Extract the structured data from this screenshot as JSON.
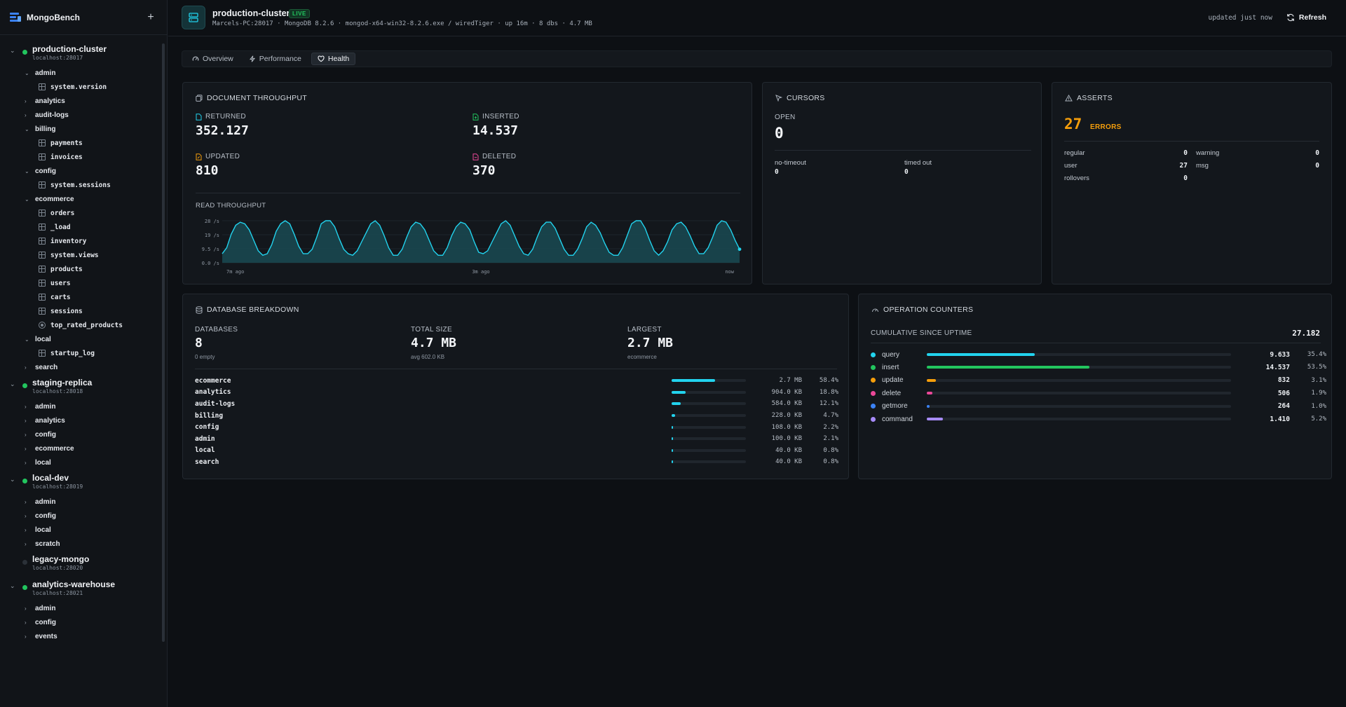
{
  "app": {
    "name": "MongoBench",
    "add_label": "+"
  },
  "sidebar": {
    "connections": [
      {
        "name": "production-cluster",
        "host": "localhost:28017",
        "expanded": true,
        "online": true,
        "dbs": [
          {
            "name": "admin",
            "expanded": true,
            "collections": [
              {
                "name": "system.version"
              }
            ]
          },
          {
            "name": "analytics",
            "expanded": false,
            "collections": []
          },
          {
            "name": "audit-logs",
            "expanded": false,
            "collections": []
          },
          {
            "name": "billing",
            "expanded": true,
            "collections": [
              {
                "name": "payments"
              },
              {
                "name": "invoices"
              }
            ]
          },
          {
            "name": "config",
            "expanded": true,
            "collections": [
              {
                "name": "system.sessions"
              }
            ]
          },
          {
            "name": "ecommerce",
            "expanded": true,
            "collections": [
              {
                "name": "orders"
              },
              {
                "name": "_load"
              },
              {
                "name": "inventory"
              },
              {
                "name": "system.views"
              },
              {
                "name": "products"
              },
              {
                "name": "users"
              },
              {
                "name": "carts"
              },
              {
                "name": "sessions"
              },
              {
                "name": "top_rated_products",
                "view": true
              }
            ]
          },
          {
            "name": "local",
            "expanded": true,
            "collections": [
              {
                "name": "startup_log"
              }
            ]
          },
          {
            "name": "search",
            "expanded": false,
            "collections": []
          }
        ]
      },
      {
        "name": "staging-replica",
        "host": "localhost:28018",
        "expanded": true,
        "online": true,
        "dbs": [
          {
            "name": "admin"
          },
          {
            "name": "analytics"
          },
          {
            "name": "config"
          },
          {
            "name": "ecommerce"
          },
          {
            "name": "local"
          }
        ]
      },
      {
        "name": "local-dev",
        "host": "localhost:28019",
        "expanded": true,
        "online": true,
        "dbs": [
          {
            "name": "admin"
          },
          {
            "name": "config"
          },
          {
            "name": "local"
          },
          {
            "name": "scratch"
          }
        ]
      },
      {
        "name": "legacy-mongo",
        "host": "localhost:28020",
        "expanded": false,
        "online": false,
        "dbs": []
      },
      {
        "name": "analytics-warehouse",
        "host": "localhost:28021",
        "expanded": true,
        "online": true,
        "dbs": [
          {
            "name": "admin"
          },
          {
            "name": "config"
          },
          {
            "name": "events"
          }
        ]
      }
    ]
  },
  "header": {
    "title": "production-cluster",
    "badge": "LIVE",
    "subtitle": "Marcels-PC:28017 · MongoDB 8.2.6 · mongod-x64-win32-8.2.6.exe / wiredTiger · up 16m · 8 dbs · 4.7 MB",
    "updated": "updated just now",
    "refresh_label": "Refresh"
  },
  "tabs": [
    {
      "label": "Overview",
      "icon": "gauge-icon",
      "active": false
    },
    {
      "label": "Performance",
      "icon": "bolt-icon",
      "active": false
    },
    {
      "label": "Health",
      "icon": "heart-icon",
      "active": true
    }
  ],
  "throughput": {
    "title": "DOCUMENT THROUGHPUT",
    "returned": {
      "label": "RETURNED",
      "value": "352.127",
      "color": "#22d3ee"
    },
    "inserted": {
      "label": "INSERTED",
      "value": "14.537",
      "color": "#22c55e"
    },
    "updated": {
      "label": "UPDATED",
      "value": "810",
      "color": "#f59e0b"
    },
    "deleted": {
      "label": "DELETED",
      "value": "370",
      "color": "#ec4899"
    },
    "chart_title": "READ THROUGHPUT",
    "chart_data": {
      "type": "area",
      "ylabels": [
        "28 /s",
        "19 /s",
        "9.5 /s",
        "0.0 /s"
      ],
      "ylim": [
        0,
        28
      ],
      "xlabels": [
        "7m ago",
        "3m ago",
        "now"
      ],
      "grid": true,
      "color": "#22d3ee",
      "values": [
        6,
        10,
        19,
        25,
        27,
        26,
        22,
        15,
        8,
        5,
        6,
        12,
        21,
        26,
        28,
        26,
        19,
        11,
        6,
        6,
        9,
        17,
        26,
        31,
        29,
        24,
        16,
        9,
        6,
        5,
        8,
        14,
        20,
        26,
        28,
        25,
        18,
        10,
        5,
        5,
        9,
        17,
        24,
        27,
        26,
        22,
        15,
        8,
        5,
        5,
        10,
        18,
        24,
        27,
        26,
        22,
        14,
        7,
        6,
        8,
        14,
        20,
        26,
        28,
        25,
        18,
        11,
        6,
        5,
        9,
        17,
        24,
        27,
        27,
        23,
        16,
        9,
        5,
        5,
        9,
        16,
        24,
        27,
        25,
        20,
        13,
        7,
        5,
        5,
        10,
        18,
        26,
        30,
        29,
        23,
        15,
        8,
        5,
        8,
        14,
        22,
        26,
        27,
        24,
        18,
        11,
        6,
        6,
        10,
        17,
        25,
        28,
        27,
        22,
        15,
        9
      ]
    }
  },
  "cursors": {
    "title": "CURSORS",
    "open_label": "OPEN",
    "open_value": "0",
    "notimeout_label": "no-timeout",
    "notimeout_value": "0",
    "timedout_label": "timed out",
    "timedout_value": "0"
  },
  "asserts": {
    "title": "ASSERTS",
    "count": "27",
    "count_label": "ERRORS",
    "accent": "#f59e0b",
    "items": [
      {
        "label": "regular",
        "value": "0"
      },
      {
        "label": "warning",
        "value": "0"
      },
      {
        "label": "user",
        "value": "27"
      },
      {
        "label": "msg",
        "value": "0"
      },
      {
        "label": "rollovers",
        "value": "0"
      }
    ]
  },
  "breakdown": {
    "title": "DATABASE BREAKDOWN",
    "databases_label": "DATABASES",
    "databases_value": "8",
    "databases_sub": "0 empty",
    "total_label": "TOTAL SIZE",
    "total_value": "4.7 MB",
    "total_sub": "avg 602.0 KB",
    "largest_label": "LARGEST",
    "largest_value": "2.7 MB",
    "largest_sub": "ecommerce",
    "rows": [
      {
        "name": "ecommerce",
        "size": "2.7 MB",
        "pct": "58.4%",
        "frac": 0.584
      },
      {
        "name": "analytics",
        "size": "904.0 KB",
        "pct": "18.8%",
        "frac": 0.188
      },
      {
        "name": "audit-logs",
        "size": "584.0 KB",
        "pct": "12.1%",
        "frac": 0.121
      },
      {
        "name": "billing",
        "size": "228.0 KB",
        "pct": "4.7%",
        "frac": 0.047
      },
      {
        "name": "config",
        "size": "108.0 KB",
        "pct": "2.2%",
        "frac": 0.022
      },
      {
        "name": "admin",
        "size": "100.0 KB",
        "pct": "2.1%",
        "frac": 0.021
      },
      {
        "name": "local",
        "size": "40.0 KB",
        "pct": "0.8%",
        "frac": 0.008
      },
      {
        "name": "search",
        "size": "40.0 KB",
        "pct": "0.8%",
        "frac": 0.008
      }
    ]
  },
  "opcounters": {
    "title": "OPERATION COUNTERS",
    "cumulative_label": "CUMULATIVE SINCE UPTIME",
    "total": "27.182",
    "rows": [
      {
        "name": "query",
        "value": "9.633",
        "pct": "35.4%",
        "frac": 0.354,
        "color": "#22d3ee"
      },
      {
        "name": "insert",
        "value": "14.537",
        "pct": "53.5%",
        "frac": 0.535,
        "color": "#22c55e"
      },
      {
        "name": "update",
        "value": "832",
        "pct": "3.1%",
        "frac": 0.031,
        "color": "#f59e0b"
      },
      {
        "name": "delete",
        "value": "506",
        "pct": "1.9%",
        "frac": 0.019,
        "color": "#ec4899"
      },
      {
        "name": "getmore",
        "value": "264",
        "pct": "1.0%",
        "frac": 0.01,
        "color": "#3b82f6"
      },
      {
        "name": "command",
        "value": "1.410",
        "pct": "5.2%",
        "frac": 0.052,
        "color": "#a78bfa"
      }
    ]
  }
}
